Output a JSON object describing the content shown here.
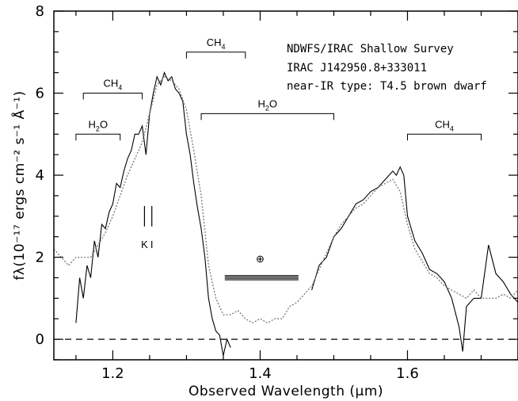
{
  "chart_data": {
    "type": "line",
    "title": "",
    "xlabel": "Observed Wavelength (μm)",
    "ylabel": "fλ(10⁻¹⁷ ergs cm⁻² s⁻¹ Å⁻¹)",
    "xlim": [
      1.12,
      1.75
    ],
    "ylim": [
      -0.5,
      8
    ],
    "xticks": [
      1.2,
      1.4,
      1.6
    ],
    "yticks": [
      0,
      2,
      4,
      6,
      8
    ],
    "xtick_labels": [
      "1.2",
      "1.4",
      "1.6"
    ],
    "ytick_labels": [
      "0",
      "2",
      "4",
      "6",
      "8"
    ],
    "grid": false,
    "annotations": [
      "NDWFS/IRAC Shallow Survey",
      "IRAC J142950.8+333011",
      "near-IR type: T4.5 brown dwarf"
    ],
    "bands": [
      {
        "label": "H2O",
        "x0": 1.15,
        "x1": 1.21,
        "y": 5.0
      },
      {
        "label": "CH4",
        "x0": 1.16,
        "x1": 1.24,
        "y": 6.0
      },
      {
        "label": "CH4",
        "x0": 1.3,
        "x1": 1.38,
        "y": 7.0
      },
      {
        "label": "H2O",
        "x0": 1.32,
        "x1": 1.5,
        "y": 5.5
      },
      {
        "label": "CH4",
        "x0": 1.6,
        "x1": 1.7,
        "y": 5.0
      }
    ],
    "lines_marked": [
      {
        "label": "K",
        "x": 1.243
      },
      {
        "label": "I",
        "x": 1.253
      }
    ],
    "telluric_symbol": "⊕",
    "zero_line": 0,
    "series": [
      {
        "style": "solid",
        "color": "#000000",
        "x": [
          1.15,
          1.155,
          1.16,
          1.165,
          1.17,
          1.175,
          1.18,
          1.185,
          1.19,
          1.195,
          1.2,
          1.205,
          1.21,
          1.215,
          1.22,
          1.225,
          1.23,
          1.235,
          1.24,
          1.245,
          1.25,
          1.255,
          1.26,
          1.265,
          1.27,
          1.275,
          1.28,
          1.285,
          1.29,
          1.295,
          1.3,
          1.305,
          1.31,
          1.315,
          1.32,
          1.325,
          1.33,
          1.335,
          1.34,
          1.345,
          1.35,
          1.355,
          1.36,
          1.47,
          1.48,
          1.49,
          1.5,
          1.51,
          1.52,
          1.53,
          1.54,
          1.55,
          1.56,
          1.57,
          1.58,
          1.585,
          1.59,
          1.595,
          1.6,
          1.61,
          1.62,
          1.63,
          1.64,
          1.65,
          1.66,
          1.67,
          1.675,
          1.68,
          1.69,
          1.7,
          1.71,
          1.72,
          1.73,
          1.74,
          1.75
        ],
        "y": [
          0.4,
          1.5,
          1.0,
          1.8,
          1.5,
          2.4,
          2.0,
          2.8,
          2.7,
          3.1,
          3.3,
          3.8,
          3.7,
          4.1,
          4.4,
          4.6,
          5.0,
          5.0,
          5.2,
          4.5,
          5.5,
          6.0,
          6.4,
          6.2,
          6.5,
          6.3,
          6.4,
          6.1,
          6.0,
          5.8,
          5.0,
          4.5,
          3.8,
          3.2,
          2.7,
          2.0,
          1.0,
          0.5,
          0.2,
          0.1,
          -0.4,
          0.0,
          -0.2,
          1.2,
          1.8,
          2.0,
          2.5,
          2.7,
          3.0,
          3.3,
          3.4,
          3.6,
          3.7,
          3.9,
          4.1,
          4.0,
          4.2,
          4.0,
          3.0,
          2.4,
          2.1,
          1.7,
          1.6,
          1.4,
          1.0,
          0.3,
          -0.3,
          0.8,
          1.0,
          1.0,
          2.3,
          1.6,
          1.4,
          1.1,
          0.9
        ]
      },
      {
        "style": "dotted",
        "color": "#777777",
        "x": [
          1.12,
          1.13,
          1.14,
          1.15,
          1.16,
          1.17,
          1.18,
          1.19,
          1.2,
          1.21,
          1.22,
          1.23,
          1.24,
          1.25,
          1.26,
          1.27,
          1.28,
          1.29,
          1.3,
          1.31,
          1.32,
          1.33,
          1.34,
          1.35,
          1.36,
          1.37,
          1.38,
          1.39,
          1.4,
          1.41,
          1.42,
          1.43,
          1.44,
          1.45,
          1.46,
          1.47,
          1.48,
          1.49,
          1.5,
          1.51,
          1.52,
          1.53,
          1.54,
          1.55,
          1.56,
          1.57,
          1.58,
          1.59,
          1.6,
          1.61,
          1.62,
          1.63,
          1.64,
          1.65,
          1.66,
          1.67,
          1.68,
          1.69,
          1.7,
          1.71,
          1.72,
          1.73,
          1.74,
          1.75
        ],
        "y": [
          2.2,
          2.0,
          1.8,
          2.0,
          2.0,
          2.0,
          2.3,
          2.6,
          3.0,
          3.5,
          4.0,
          4.4,
          4.8,
          5.5,
          6.2,
          6.4,
          6.3,
          6.1,
          5.6,
          4.6,
          3.5,
          1.8,
          1.0,
          0.6,
          0.6,
          0.7,
          0.5,
          0.4,
          0.5,
          0.4,
          0.5,
          0.5,
          0.8,
          0.9,
          1.1,
          1.3,
          1.7,
          2.1,
          2.5,
          2.8,
          3.0,
          3.2,
          3.3,
          3.5,
          3.7,
          3.8,
          3.9,
          3.6,
          2.8,
          2.2,
          1.9,
          1.6,
          1.5,
          1.3,
          1.2,
          1.1,
          1.0,
          1.2,
          1.0,
          1.0,
          1.0,
          1.1,
          1.0,
          1.2
        ]
      }
    ]
  }
}
